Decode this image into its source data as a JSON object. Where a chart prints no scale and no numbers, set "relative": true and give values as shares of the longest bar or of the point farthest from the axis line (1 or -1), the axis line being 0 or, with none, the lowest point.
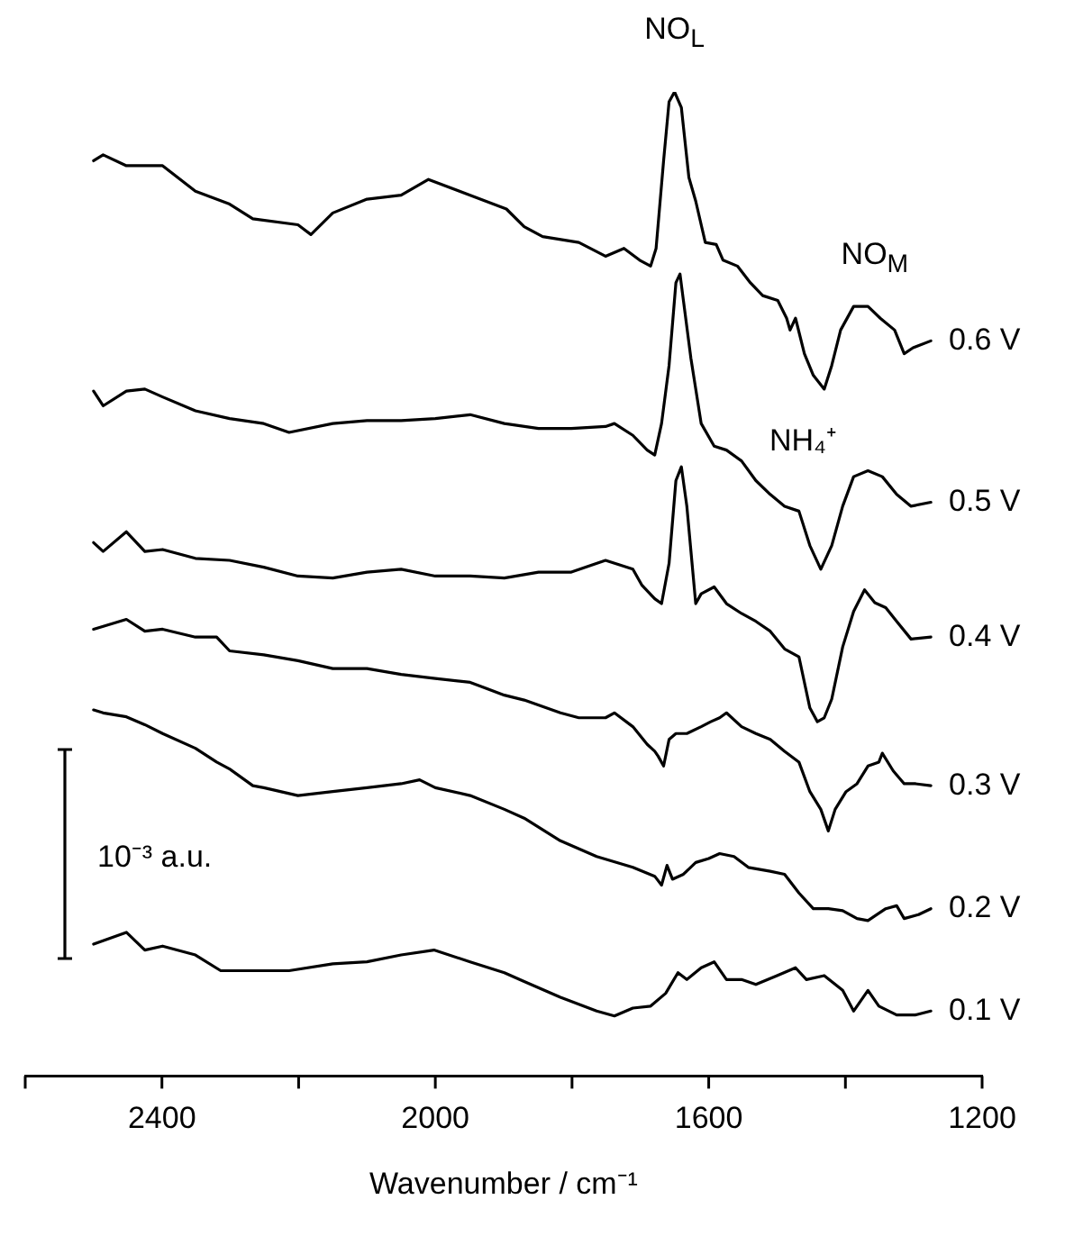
{
  "chart_data": {
    "type": "line",
    "relative": true,
    "xlabel": "Wavenumber / cm⁻¹",
    "xlim": [
      2600,
      1200
    ],
    "xticks": [
      {
        "value": 2600,
        "label": null
      },
      2400,
      {
        "value": 2200,
        "label": null
      },
      2000,
      {
        "value": 1800,
        "label": null
      },
      1600,
      {
        "value": 1400,
        "label": null
      },
      1200
    ],
    "grid": false,
    "legend": false,
    "marker": "none",
    "annotations": [
      "10⁻³ a.u.",
      {
        "text": "NO$_{L}$",
        "x": 1650,
        "y": 1
      },
      {
        "text": "NO$_{M}$",
        "x": 1357,
        "y": 0.772
      },
      "NH₄⁺"
    ],
    "series": [
      {
        "name": "0.6 V",
        "color": "#000000",
        "x": [
          2500,
          2486,
          2452,
          2399,
          2351,
          2301,
          2267,
          2201,
          2182,
          2150,
          2100,
          2050,
          2010,
          1949,
          1896,
          1870,
          1843,
          1790,
          1751,
          1724,
          1701,
          1685,
          1677,
          1666,
          1658,
          1650,
          1640,
          1629,
          1619,
          1605,
          1589,
          1579,
          1558,
          1539,
          1521,
          1499,
          1486,
          1481,
          1473,
          1460,
          1447,
          1431,
          1420,
          1407,
          1388,
          1367,
          1349,
          1328,
          1314,
          1301,
          1275
        ],
        "values": [
          0.93,
          0.936,
          0.925,
          0.925,
          0.899,
          0.886,
          0.871,
          0.865,
          0.855,
          0.877,
          0.891,
          0.895,
          0.911,
          0.895,
          0.881,
          0.863,
          0.853,
          0.847,
          0.833,
          0.841,
          0.829,
          0.823,
          0.841,
          0.93,
          0.99,
          1,
          0.984,
          0.913,
          0.889,
          0.847,
          0.845,
          0.829,
          0.823,
          0.806,
          0.793,
          0.788,
          0.77,
          0.758,
          0.77,
          0.734,
          0.712,
          0.698,
          0.722,
          0.758,
          0.782,
          0.782,
          0.77,
          0.758,
          0.734,
          0.74,
          0.747
        ]
      },
      {
        "name": "0.5 V",
        "color": "#000000",
        "x": [
          2500,
          2486,
          2452,
          2425,
          2399,
          2351,
          2301,
          2251,
          2214,
          2150,
          2100,
          2050,
          2000,
          1949,
          1899,
          1849,
          1801,
          1751,
          1738,
          1711,
          1690,
          1679,
          1669,
          1658,
          1648,
          1642,
          1637,
          1626,
          1611,
          1592,
          1574,
          1552,
          1531,
          1510,
          1489,
          1468,
          1452,
          1436,
          1420,
          1404,
          1388,
          1367,
          1346,
          1325,
          1304,
          1275
        ],
        "values": [
          0.696,
          0.681,
          0.696,
          0.698,
          0.69,
          0.676,
          0.668,
          0.663,
          0.654,
          0.663,
          0.666,
          0.666,
          0.668,
          0.672,
          0.663,
          0.658,
          0.658,
          0.66,
          0.663,
          0.651,
          0.636,
          0.631,
          0.663,
          0.722,
          0.806,
          0.815,
          0.788,
          0.729,
          0.663,
          0.64,
          0.636,
          0.625,
          0.605,
          0.591,
          0.579,
          0.574,
          0.539,
          0.515,
          0.539,
          0.579,
          0.609,
          0.615,
          0.609,
          0.591,
          0.579,
          0.583
        ]
      },
      {
        "name": "0.4 V",
        "color": "#000000",
        "x": [
          2500,
          2486,
          2452,
          2425,
          2399,
          2351,
          2301,
          2251,
          2201,
          2150,
          2100,
          2050,
          2000,
          1949,
          1899,
          1849,
          1801,
          1751,
          1711,
          1698,
          1679,
          1669,
          1658,
          1648,
          1640,
          1632,
          1619,
          1611,
          1592,
          1574,
          1552,
          1531,
          1510,
          1489,
          1468,
          1452,
          1441,
          1431,
          1420,
          1404,
          1388,
          1372,
          1357,
          1341,
          1325,
          1304,
          1275
        ],
        "values": [
          0.542,
          0.533,
          0.553,
          0.533,
          0.535,
          0.526,
          0.524,
          0.517,
          0.508,
          0.506,
          0.512,
          0.515,
          0.508,
          0.508,
          0.506,
          0.512,
          0.512,
          0.524,
          0.515,
          0.499,
          0.485,
          0.48,
          0.521,
          0.605,
          0.619,
          0.579,
          0.48,
          0.49,
          0.497,
          0.48,
          0.47,
          0.462,
          0.452,
          0.434,
          0.426,
          0.374,
          0.36,
          0.364,
          0.383,
          0.436,
          0.472,
          0.494,
          0.481,
          0.476,
          0.462,
          0.444,
          0.446
        ]
      },
      {
        "name": "0.3 V",
        "color": "#000000",
        "x": [
          2500,
          2452,
          2425,
          2399,
          2351,
          2320,
          2301,
          2251,
          2201,
          2150,
          2100,
          2050,
          2000,
          1949,
          1899,
          1870,
          1817,
          1790,
          1751,
          1738,
          1711,
          1690,
          1679,
          1674,
          1666,
          1658,
          1648,
          1632,
          1611,
          1597,
          1584,
          1574,
          1552,
          1531,
          1510,
          1489,
          1468,
          1452,
          1436,
          1425,
          1415,
          1399,
          1383,
          1367,
          1351,
          1346,
          1330,
          1314,
          1298,
          1275
        ],
        "values": [
          0.454,
          0.464,
          0.452,
          0.454,
          0.446,
          0.446,
          0.432,
          0.428,
          0.422,
          0.414,
          0.414,
          0.408,
          0.404,
          0.4,
          0.387,
          0.382,
          0.369,
          0.364,
          0.364,
          0.369,
          0.355,
          0.337,
          0.33,
          0.325,
          0.315,
          0.342,
          0.348,
          0.348,
          0.355,
          0.36,
          0.364,
          0.369,
          0.355,
          0.348,
          0.342,
          0.33,
          0.319,
          0.289,
          0.271,
          0.249,
          0.271,
          0.289,
          0.297,
          0.315,
          0.319,
          0.328,
          0.31,
          0.297,
          0.297,
          0.295
        ]
      },
      {
        "name": "0.2 V",
        "color": "#000000",
        "x": [
          2500,
          2486,
          2452,
          2425,
          2399,
          2351,
          2320,
          2301,
          2267,
          2251,
          2201,
          2150,
          2100,
          2050,
          2023,
          2000,
          1949,
          1899,
          1870,
          1817,
          1764,
          1711,
          1679,
          1669,
          1661,
          1653,
          1637,
          1619,
          1600,
          1584,
          1563,
          1542,
          1510,
          1489,
          1468,
          1447,
          1425,
          1404,
          1383,
          1367,
          1341,
          1325,
          1314,
          1293,
          1275
        ],
        "values": [
          0.372,
          0.369,
          0.365,
          0.357,
          0.348,
          0.333,
          0.319,
          0.312,
          0.295,
          0.293,
          0.285,
          0.289,
          0.293,
          0.297,
          0.301,
          0.293,
          0.285,
          0.271,
          0.262,
          0.239,
          0.223,
          0.212,
          0.203,
          0.194,
          0.214,
          0.2,
          0.205,
          0.217,
          0.221,
          0.226,
          0.223,
          0.212,
          0.208,
          0.205,
          0.186,
          0.17,
          0.17,
          0.168,
          0.16,
          0.158,
          0.17,
          0.173,
          0.16,
          0.164,
          0.17
        ]
      },
      {
        "name": "0.1 V",
        "color": "#000000",
        "x": [
          2500,
          2452,
          2425,
          2399,
          2351,
          2314,
          2267,
          2214,
          2150,
          2100,
          2050,
          2002,
          1949,
          1899,
          1870,
          1817,
          1764,
          1738,
          1711,
          1685,
          1663,
          1645,
          1632,
          1611,
          1592,
          1574,
          1552,
          1531,
          1500,
          1473,
          1457,
          1431,
          1404,
          1388,
          1367,
          1351,
          1325,
          1298,
          1275
        ],
        "values": [
          0.134,
          0.146,
          0.128,
          0.132,
          0.123,
          0.107,
          0.107,
          0.107,
          0.114,
          0.116,
          0.123,
          0.128,
          0.116,
          0.105,
          0.096,
          0.08,
          0.066,
          0.061,
          0.069,
          0.071,
          0.084,
          0.105,
          0.098,
          0.11,
          0.116,
          0.098,
          0.098,
          0.093,
          0.102,
          0.11,
          0.098,
          0.102,
          0.087,
          0.066,
          0.087,
          0.071,
          0.062,
          0.062,
          0.066
        ]
      }
    ]
  }
}
